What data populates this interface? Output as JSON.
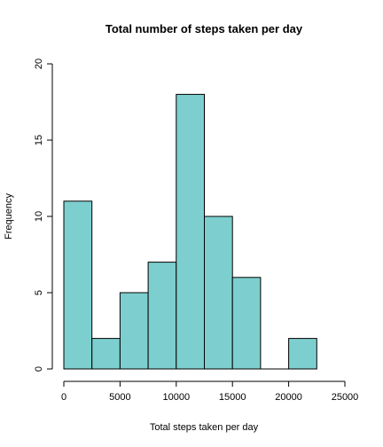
{
  "chart_data": {
    "type": "bar",
    "title": "Total number of steps taken per day",
    "xlabel": "Total steps taken per day",
    "ylabel": "Frequency",
    "bins": [
      {
        "start": 0,
        "end": 2500,
        "count": 11
      },
      {
        "start": 2500,
        "end": 5000,
        "count": 2
      },
      {
        "start": 5000,
        "end": 7500,
        "count": 5
      },
      {
        "start": 7500,
        "end": 10000,
        "count": 7
      },
      {
        "start": 10000,
        "end": 12500,
        "count": 18
      },
      {
        "start": 12500,
        "end": 15000,
        "count": 10
      },
      {
        "start": 15000,
        "end": 17500,
        "count": 6
      },
      {
        "start": 17500,
        "end": 20000,
        "count": 0
      },
      {
        "start": 20000,
        "end": 22500,
        "count": 2
      }
    ],
    "xlim": [
      0,
      25000
    ],
    "ylim": [
      0,
      20
    ],
    "xticks": [
      0,
      5000,
      10000,
      15000,
      20000,
      25000
    ],
    "yticks": [
      0,
      5,
      10,
      15,
      20
    ],
    "xtick_labels": [
      "0",
      "5000",
      "10000",
      "15000",
      "20000",
      "25000"
    ],
    "ytick_labels": [
      "0",
      "5",
      "10",
      "15",
      "20"
    ],
    "bar_color": "#7dcfcf",
    "grid": false,
    "legend": "none"
  }
}
